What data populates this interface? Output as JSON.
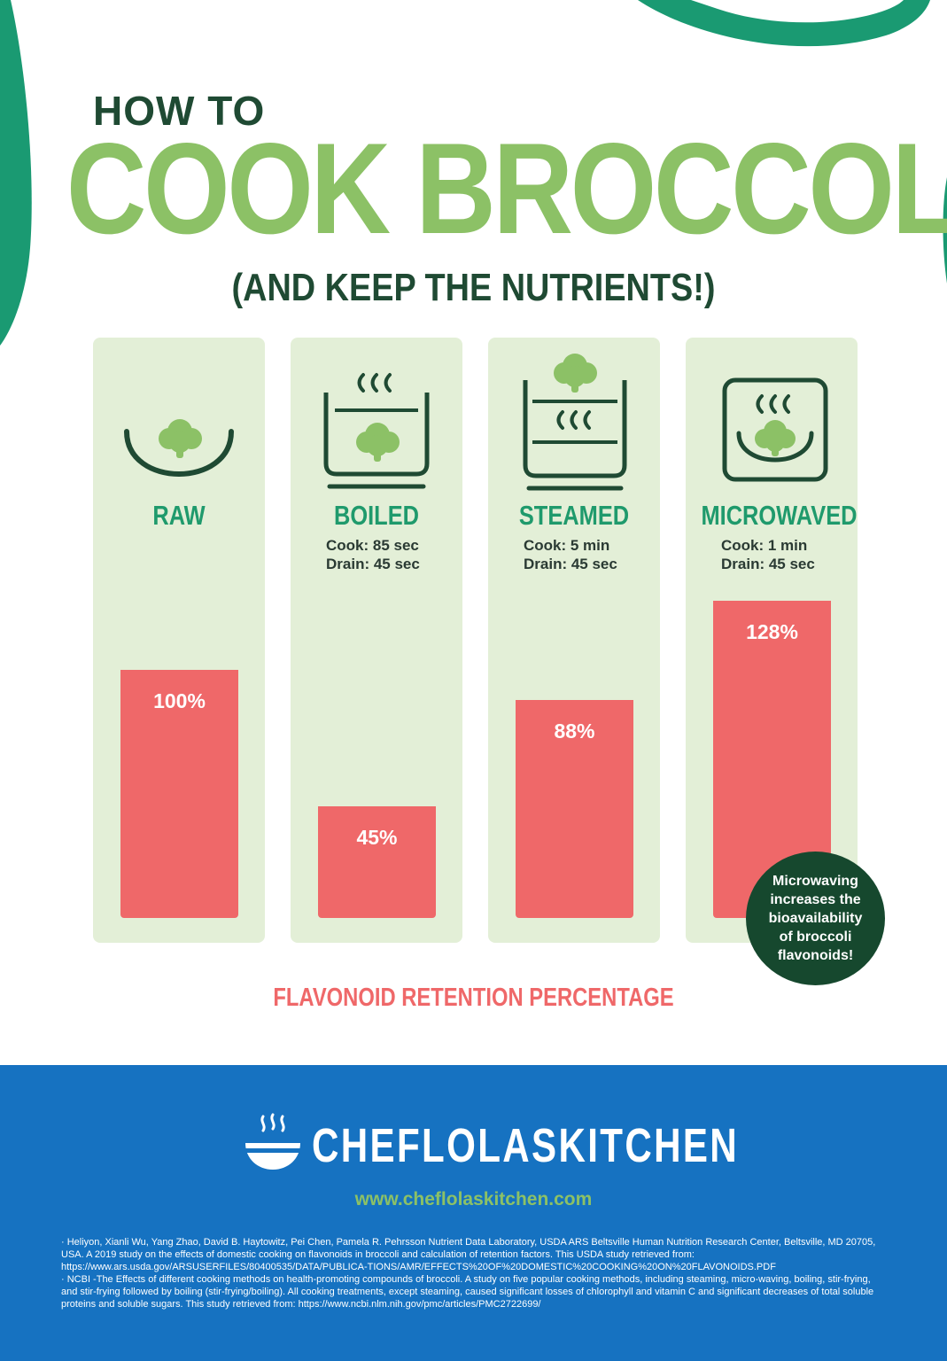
{
  "header": {
    "pre_title": "HOW TO",
    "title": "COOK BROCCOLI",
    "subtitle": "(AND KEEP THE NUTRIENTS!)"
  },
  "methods": [
    {
      "name": "RAW",
      "cook": "",
      "drain": "",
      "icon": "raw-bowl-icon"
    },
    {
      "name": "BOILED",
      "cook": "Cook: 85 sec",
      "drain": "Drain: 45 sec",
      "icon": "boiling-pot-icon"
    },
    {
      "name": "STEAMED",
      "cook": "Cook: 5 min",
      "drain": "Drain: 45 sec",
      "icon": "steamer-pot-icon"
    },
    {
      "name": "MICROWAVED",
      "cook": "Cook: 1 min",
      "drain": "Drain: 45 sec",
      "icon": "microwave-icon"
    }
  ],
  "chart_data": {
    "type": "bar",
    "categories": [
      "RAW",
      "BOILED",
      "STEAMED",
      "MICROWAVED"
    ],
    "values": [
      100,
      45,
      88,
      128
    ],
    "value_labels": [
      "100%",
      "45%",
      "88%",
      "128%"
    ],
    "title": "",
    "xlabel": "FLAVONOID RETENTION PERCENTAGE",
    "ylabel": "",
    "ylim": [
      0,
      128
    ],
    "grid": false,
    "annotations": [
      "Microwaving increases the bioavailability of broccoli flavonoids!"
    ]
  },
  "callout": {
    "text": "Microwaving increases the bioavailability of broccoli flavonoids!"
  },
  "footer": {
    "brand": "CHEFLOLASKITCHEN",
    "url": "www.cheflolaskitchen.com",
    "references": [
      "· Heliyon, Xianli Wu, Yang Zhao, David B. Haytowitz, Pei Chen, Pamela R. Pehrsson Nutrient Data Laboratory, USDA ARS Beltsville Human Nutrition Research Center, Beltsville, MD 20705, USA. A 2019 study on the effects of domestic cooking on flavonoids in broccoli and calculation of retention factors. This USDA study retrieved from: https://www.ars.usda.gov/ARSUSERFILES/80400535/DATA/PUBLICA-TIONS/AMR/EFFECTS%20OF%20DOMESTIC%20COOKING%20ON%20FLAVONOIDS.PDF",
      "· NCBI -The Effects of different cooking methods on health-promoting compounds of broccoli. A study on five popular cooking methods, including steaming, micro-waving, boiling, stir-frying, and stir-frying followed by boiling (stir-frying/boiling). All cooking treatments, except steaming, caused significant losses of chlorophyll and vitamin C and significant decreases of total soluble proteins and soluble sugars. This study retrieved from: https://www.ncbi.nlm.nih.gov/pmc/articles/PMC2722699/"
    ]
  },
  "colors": {
    "title_green": "#8cc166",
    "dark_green": "#1f4a33",
    "label_green": "#1f9a6c",
    "panel": "#e3efd7",
    "bar": "#ef6869",
    "footer_blue": "#1672c1"
  }
}
